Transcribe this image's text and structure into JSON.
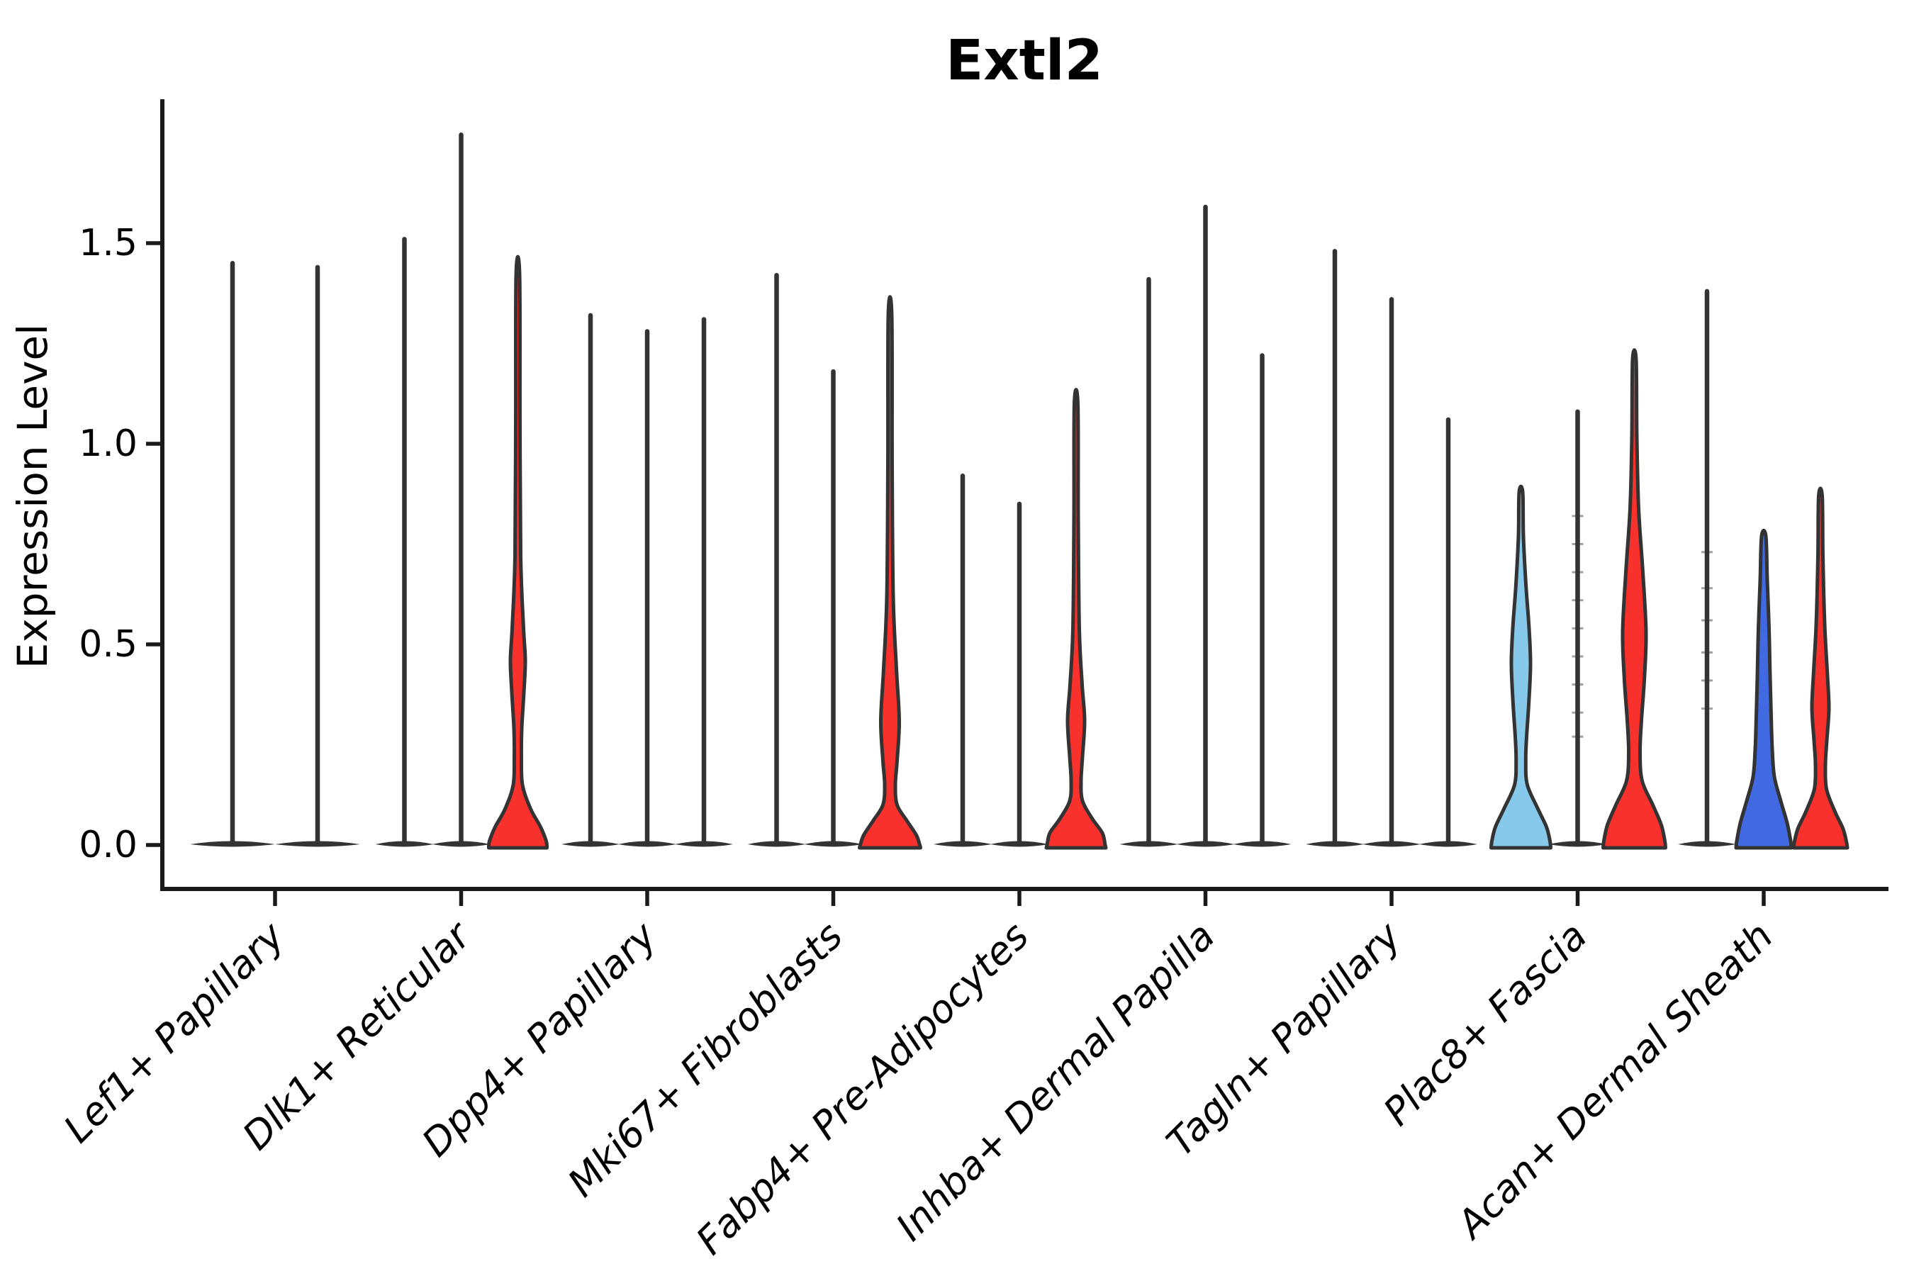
{
  "figure": {
    "background": "#ffffff"
  },
  "chart_data": {
    "type": "violin",
    "title": "Extl2",
    "ylabel": "Expression Level",
    "xlabel": "",
    "grid": false,
    "legend": "none",
    "ylim": [
      -0.11,
      1.86
    ],
    "yticks": [
      {
        "label": "0.0",
        "value": 0.0
      },
      {
        "label": "0.5",
        "value": 0.5
      },
      {
        "label": "1.0",
        "value": 1.0
      },
      {
        "label": "1.5",
        "value": 1.5
      }
    ],
    "palette": {
      "line_violin": "#333333",
      "outline": "#333333",
      "red": "#f8312d",
      "sky_blue": "#87c9ea",
      "royal_blue": "#4169e1",
      "spine": "#1a1a1a",
      "text": "#000000"
    },
    "categories": [
      "Lef1+ Papillary",
      "Dlk1+ Reticular",
      "Dpp4+ Papillary",
      "Mki67+ Fibroblasts",
      "Fabp4+ Pre-Adipocytes",
      "Inhba+ Dermal Papilla",
      "Tagln+ Papillary",
      "Plac8+ Fascia",
      "Acan+ Dermal Sheath"
    ],
    "groups": [
      {
        "category": "Lef1+ Papillary",
        "violins": [
          {
            "kind": "line",
            "max": 1.45
          },
          {
            "kind": "line",
            "max": 1.44
          }
        ]
      },
      {
        "category": "Dlk1+ Reticular",
        "violins": [
          {
            "kind": "line",
            "max": 1.51
          },
          {
            "kind": "line",
            "max": 1.77
          },
          {
            "kind": "violin",
            "fill": "red",
            "max": 1.42,
            "profile": [
              [
                1.42,
                2.5
              ],
              [
                1.05,
                3
              ],
              [
                0.72,
                4
              ],
              [
                0.54,
                8
              ],
              [
                0.46,
                10.5
              ],
              [
                0.38,
                8.5
              ],
              [
                0.29,
                5.5
              ],
              [
                0.22,
                5
              ],
              [
                0.15,
                6.5
              ],
              [
                0.09,
                18
              ],
              [
                0.045,
                32
              ],
              [
                0.01,
                40
              ],
              [
                -0.007,
                41
              ]
            ]
          }
        ]
      },
      {
        "category": "Dpp4+ Papillary",
        "violins": [
          {
            "kind": "line",
            "max": 1.32
          },
          {
            "kind": "line",
            "max": 1.28
          },
          {
            "kind": "line",
            "max": 1.31
          }
        ]
      },
      {
        "category": "Mki67+ Fibroblasts",
        "violins": [
          {
            "kind": "line",
            "max": 1.42
          },
          {
            "kind": "line",
            "max": 1.18
          },
          {
            "kind": "violin",
            "fill": "red",
            "max": 1.32,
            "profile": [
              [
                1.32,
                2.5
              ],
              [
                0.95,
                3
              ],
              [
                0.62,
                4.5
              ],
              [
                0.44,
                9
              ],
              [
                0.31,
                13
              ],
              [
                0.21,
                10
              ],
              [
                0.15,
                7.5
              ],
              [
                0.1,
                10
              ],
              [
                0.06,
                24
              ],
              [
                0.025,
                37
              ],
              [
                0.0,
                42
              ],
              [
                -0.007,
                43
              ]
            ]
          }
        ]
      },
      {
        "category": "Fabp4+ Pre-Adipocytes",
        "violins": [
          {
            "kind": "line",
            "max": 0.92
          },
          {
            "kind": "line",
            "max": 0.85
          },
          {
            "kind": "violin",
            "fill": "red",
            "max": 1.1,
            "profile": [
              [
                1.1,
                2.5
              ],
              [
                0.82,
                3
              ],
              [
                0.54,
                4.5
              ],
              [
                0.4,
                8.5
              ],
              [
                0.31,
                12
              ],
              [
                0.22,
                9
              ],
              [
                0.16,
                7
              ],
              [
                0.11,
                9
              ],
              [
                0.065,
                23
              ],
              [
                0.03,
                37
              ],
              [
                0.0,
                41
              ],
              [
                -0.007,
                42
              ]
            ]
          }
        ]
      },
      {
        "category": "Inhba+ Dermal Papilla",
        "violins": [
          {
            "kind": "line",
            "max": 1.41
          },
          {
            "kind": "line",
            "max": 1.59
          },
          {
            "kind": "line",
            "max": 1.22
          }
        ]
      },
      {
        "category": "Tagln+ Papillary",
        "violins": [
          {
            "kind": "line",
            "max": 1.48
          },
          {
            "kind": "line",
            "max": 1.36
          },
          {
            "kind": "line",
            "max": 1.06
          }
        ]
      },
      {
        "category": "Plac8+ Fascia",
        "violins": [
          {
            "kind": "violin",
            "fill": "sky_blue",
            "max": 0.88,
            "profile": [
              [
                0.88,
                2.5
              ],
              [
                0.77,
                3.5
              ],
              [
                0.65,
                7
              ],
              [
                0.54,
                11.5
              ],
              [
                0.45,
                13.5
              ],
              [
                0.35,
                11
              ],
              [
                0.27,
                8
              ],
              [
                0.21,
                6.8
              ],
              [
                0.15,
                9
              ],
              [
                0.09,
                24
              ],
              [
                0.045,
                36
              ],
              [
                0.01,
                41
              ],
              [
                -0.007,
                42
              ]
            ]
          },
          {
            "kind": "line",
            "max": 1.08,
            "marks": [
              0.82,
              0.75,
              0.68,
              0.61,
              0.54,
              0.47,
              0.4,
              0.33,
              0.27
            ]
          },
          {
            "kind": "violin",
            "fill": "red",
            "max": 1.21,
            "profile": [
              [
                1.21,
                2.5
              ],
              [
                1.02,
                3.5
              ],
              [
                0.84,
                6
              ],
              [
                0.68,
                12
              ],
              [
                0.53,
                16.5
              ],
              [
                0.41,
                14
              ],
              [
                0.31,
                10
              ],
              [
                0.23,
                8
              ],
              [
                0.16,
                11
              ],
              [
                0.1,
                26
              ],
              [
                0.05,
                38
              ],
              [
                0.01,
                43
              ],
              [
                -0.007,
                44
              ]
            ]
          }
        ]
      },
      {
        "category": "Acan+ Dermal Sheath",
        "violins": [
          {
            "kind": "line",
            "max": 1.38,
            "marks": [
              0.73,
              0.64,
              0.56,
              0.48,
              0.41,
              0.34
            ]
          },
          {
            "kind": "violin",
            "fill": "royal_blue",
            "max": 0.77,
            "profile": [
              [
                0.77,
                3
              ],
              [
                0.66,
                5
              ],
              [
                0.54,
                7.5
              ],
              [
                0.42,
                9
              ],
              [
                0.32,
                10.5
              ],
              [
                0.24,
                12
              ],
              [
                0.17,
                15
              ],
              [
                0.11,
                24
              ],
              [
                0.055,
                33
              ],
              [
                0.01,
                38
              ],
              [
                -0.007,
                39
              ]
            ]
          },
          {
            "kind": "violin",
            "fill": "red",
            "max": 0.87,
            "profile": [
              [
                0.87,
                2.5
              ],
              [
                0.72,
                3.5
              ],
              [
                0.55,
                6
              ],
              [
                0.42,
                10
              ],
              [
                0.34,
                12
              ],
              [
                0.26,
                9
              ],
              [
                0.2,
                7
              ],
              [
                0.14,
                8.5
              ],
              [
                0.085,
                20
              ],
              [
                0.04,
                32
              ],
              [
                0.005,
                37
              ],
              [
                -0.007,
                38
              ]
            ]
          }
        ]
      }
    ]
  }
}
